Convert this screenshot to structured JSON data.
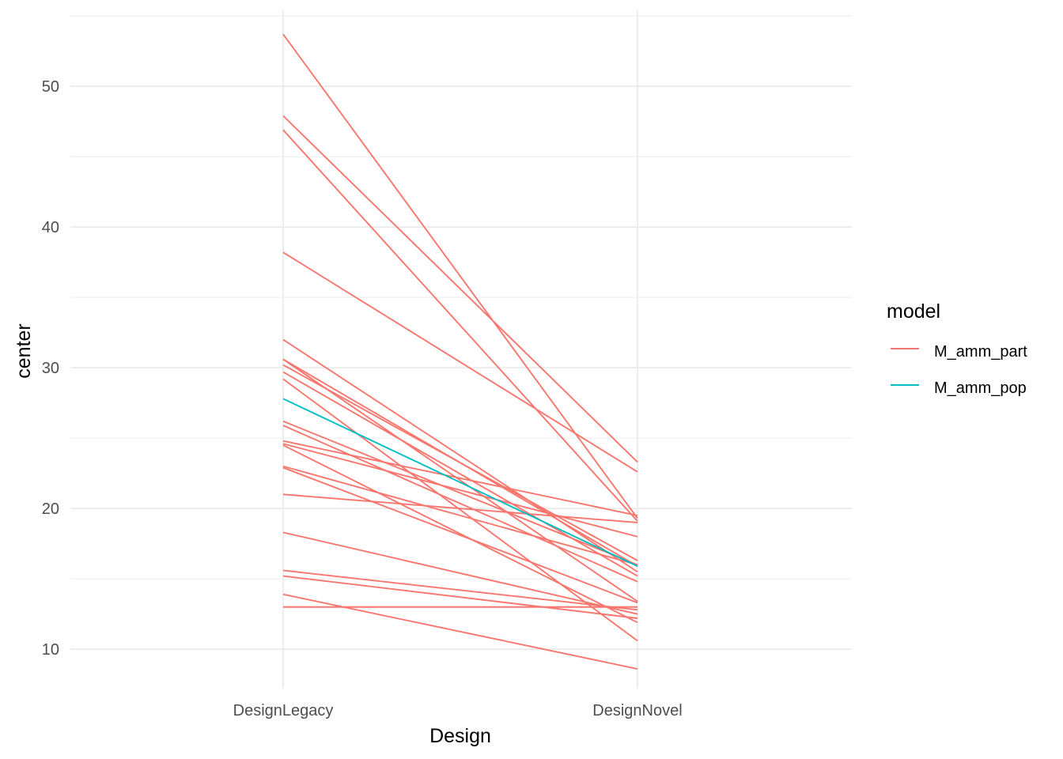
{
  "chart_data": {
    "type": "line",
    "xlabel": "Design",
    "ylabel": "center",
    "categories": [
      "DesignLegacy",
      "DesignNovel"
    ],
    "ylim": [
      7.2,
      55.4
    ],
    "y_ticks": [
      10,
      20,
      30,
      40,
      50
    ],
    "y_minor_ticks": [
      15,
      25,
      35,
      45,
      55
    ],
    "grid": true,
    "legend": {
      "title": "model",
      "position": "right",
      "entries": [
        {
          "label": "M_amm_part",
          "color": "#F8766D"
        },
        {
          "label": "M_amm_pop",
          "color": "#00BFC4"
        }
      ]
    },
    "series": [
      {
        "group": "M_amm_part",
        "color": "#F8766D",
        "values": [
          53.7,
          19.3
        ]
      },
      {
        "group": "M_amm_part",
        "color": "#F8766D",
        "values": [
          47.9,
          23.3
        ]
      },
      {
        "group": "M_amm_part",
        "color": "#F8766D",
        "values": [
          46.9,
          19.1
        ]
      },
      {
        "group": "M_amm_part",
        "color": "#F8766D",
        "values": [
          38.2,
          22.6
        ]
      },
      {
        "group": "M_amm_part",
        "color": "#F8766D",
        "values": [
          32.0,
          15.5
        ]
      },
      {
        "group": "M_amm_part",
        "color": "#F8766D",
        "values": [
          30.6,
          15.9
        ]
      },
      {
        "group": "M_amm_part",
        "color": "#F8766D",
        "values": [
          30.6,
          13.4
        ]
      },
      {
        "group": "M_amm_part",
        "color": "#F8766D",
        "values": [
          30.2,
          16.3
        ]
      },
      {
        "group": "M_amm_part",
        "color": "#F8766D",
        "values": [
          29.7,
          15.2
        ]
      },
      {
        "group": "M_amm_part",
        "color": "#F8766D",
        "values": [
          29.2,
          10.6
        ]
      },
      {
        "group": "M_amm_part",
        "color": "#F8766D",
        "values": [
          26.2,
          16.0
        ]
      },
      {
        "group": "M_amm_part",
        "color": "#F8766D",
        "values": [
          25.9,
          14.8
        ]
      },
      {
        "group": "M_amm_part",
        "color": "#F8766D",
        "values": [
          24.8,
          19.5
        ]
      },
      {
        "group": "M_amm_part",
        "color": "#F8766D",
        "values": [
          24.6,
          18.0
        ]
      },
      {
        "group": "M_amm_part",
        "color": "#F8766D",
        "values": [
          24.5,
          11.9
        ]
      },
      {
        "group": "M_amm_part",
        "color": "#F8766D",
        "values": [
          23.0,
          16.0
        ]
      },
      {
        "group": "M_amm_part",
        "color": "#F8766D",
        "values": [
          22.9,
          13.3
        ]
      },
      {
        "group": "M_amm_part",
        "color": "#F8766D",
        "values": [
          21.0,
          19.0
        ]
      },
      {
        "group": "M_amm_part",
        "color": "#F8766D",
        "values": [
          18.3,
          12.5
        ]
      },
      {
        "group": "M_amm_part",
        "color": "#F8766D",
        "values": [
          15.6,
          12.8
        ]
      },
      {
        "group": "M_amm_part",
        "color": "#F8766D",
        "values": [
          15.2,
          12.2
        ]
      },
      {
        "group": "M_amm_part",
        "color": "#F8766D",
        "values": [
          13.9,
          8.6
        ]
      },
      {
        "group": "M_amm_part",
        "color": "#F8766D",
        "values": [
          13.0,
          13.0
        ]
      },
      {
        "group": "M_amm_pop",
        "color": "#00BFC4",
        "values": [
          27.8,
          15.9
        ]
      }
    ]
  }
}
